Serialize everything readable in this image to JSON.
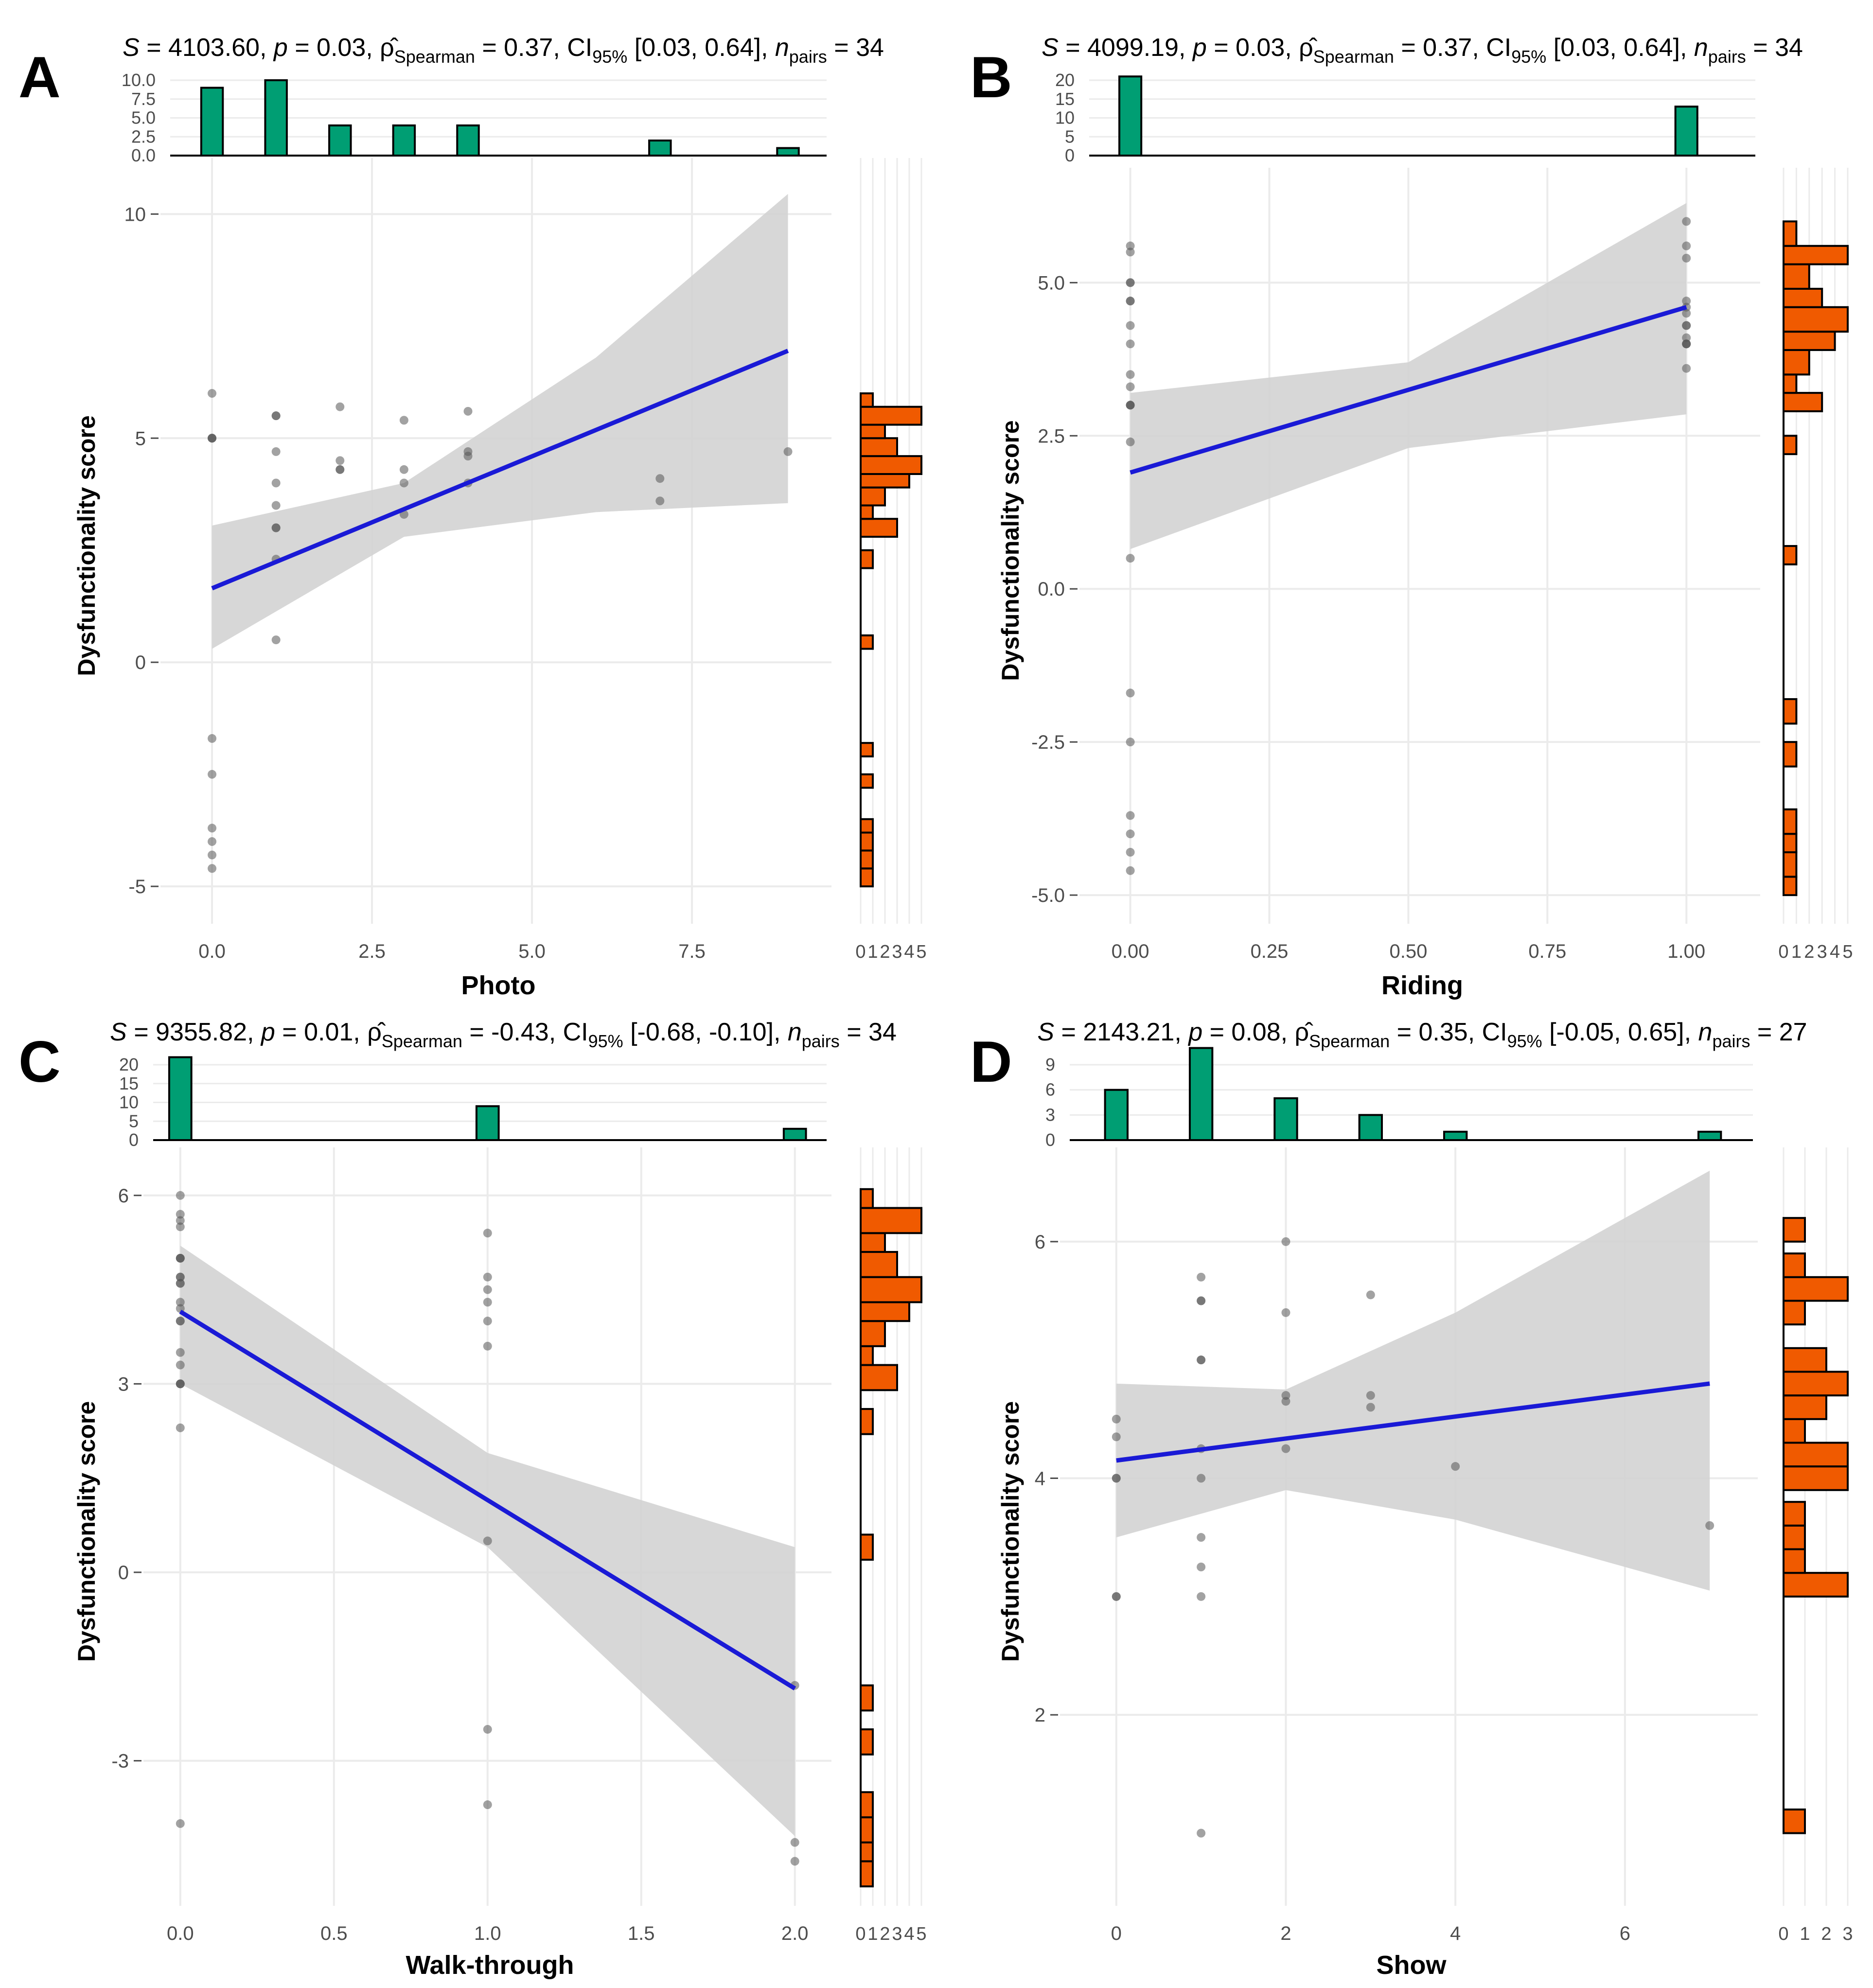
{
  "figure": {
    "y_label": "Dysfunctionality score",
    "colors": {
      "marginal_x": "#009E73",
      "marginal_y": "#F05A00",
      "fit_line": "#1A1AD6",
      "ci_band": "#D3D3D3",
      "points": "#555555",
      "grid": "#EBEBEB",
      "axis_text": "#4D4D4D",
      "text": "#000000"
    }
  },
  "chart_data": [
    {
      "panel_letter": "A",
      "type": "scatter",
      "title": {
        "S": "4103.60",
        "p": "0.03",
        "rho": "0.37",
        "ci": "[0.03, 0.64]",
        "n": "34"
      },
      "xlabel": "Photo",
      "ylabel": "Dysfunctionality score",
      "xlim": [
        -0.35,
        9.3
      ],
      "ylim": [
        -5.4,
        10.6
      ],
      "x_ticks": [
        0,
        2.5,
        5,
        7.5
      ],
      "x_tick_labels": [
        "0.0",
        "2.5",
        "5.0",
        "7.5"
      ],
      "y_ticks": [
        -5,
        0,
        5,
        10
      ],
      "y_tick_labels": [
        "-5",
        "0",
        "5",
        "10"
      ],
      "points": [
        [
          0,
          6.0
        ],
        [
          0,
          5.0
        ],
        [
          0,
          5.0
        ],
        [
          0,
          -1.7
        ],
        [
          0,
          -2.5
        ],
        [
          0,
          -3.7
        ],
        [
          0,
          -4.0
        ],
        [
          0,
          -4.3
        ],
        [
          0,
          -4.6
        ],
        [
          1,
          5.5
        ],
        [
          1,
          5.5
        ],
        [
          1,
          4.7
        ],
        [
          1,
          4.0
        ],
        [
          1,
          3.5
        ],
        [
          1,
          3.0
        ],
        [
          1,
          3.0
        ],
        [
          1,
          2.3
        ],
        [
          1,
          0.5
        ],
        [
          2,
          5.7
        ],
        [
          2,
          4.5
        ],
        [
          2,
          4.3
        ],
        [
          2,
          4.3
        ],
        [
          3,
          5.4
        ],
        [
          3,
          4.3
        ],
        [
          3,
          4.0
        ],
        [
          3,
          3.3
        ],
        [
          4,
          5.6
        ],
        [
          4,
          4.7
        ],
        [
          4,
          4.6
        ],
        [
          4,
          4.0
        ],
        [
          7,
          4.1
        ],
        [
          7,
          3.6
        ],
        [
          9,
          4.7
        ],
        [
          0,
          5.0
        ]
      ],
      "fit": {
        "x": [
          0,
          9
        ],
        "y": [
          1.65,
          6.95
        ]
      },
      "ci_band": {
        "x": [
          0,
          3,
          6,
          9
        ],
        "lower": [
          0.3,
          2.8,
          3.35,
          3.55
        ],
        "upper": [
          3.05,
          4.0,
          6.8,
          10.45
        ]
      },
      "top_hist": {
        "categories": [
          0,
          1,
          2,
          3,
          4,
          7,
          9
        ],
        "counts": [
          9,
          10,
          4,
          4,
          4,
          2,
          1
        ],
        "ticks": [
          0,
          2.5,
          5,
          7.5,
          10
        ],
        "tick_labels": [
          "0.0",
          "2.5",
          "5.0",
          "7.5",
          "10.0"
        ]
      },
      "side_hist": {
        "bins": [
          [
            -5.0,
            -4.6,
            1
          ],
          [
            -4.6,
            -4.2,
            1
          ],
          [
            -4.2,
            -3.8,
            1
          ],
          [
            -3.8,
            -3.5,
            1
          ],
          [
            -2.8,
            -2.5,
            1
          ],
          [
            -2.1,
            -1.8,
            1
          ],
          [
            0.3,
            0.6,
            1
          ],
          [
            2.1,
            2.5,
            1
          ],
          [
            2.8,
            3.2,
            3
          ],
          [
            3.2,
            3.5,
            1
          ],
          [
            3.5,
            3.9,
            2
          ],
          [
            3.9,
            4.2,
            4
          ],
          [
            4.2,
            4.6,
            5
          ],
          [
            4.6,
            5.0,
            3
          ],
          [
            5.0,
            5.3,
            2
          ],
          [
            5.3,
            5.7,
            5
          ],
          [
            5.7,
            6.0,
            1
          ]
        ],
        "ticks": [
          0,
          1,
          2,
          3,
          4,
          5
        ],
        "tick_labels": [
          "0",
          "1",
          "2",
          "3",
          "4",
          "5"
        ]
      }
    },
    {
      "panel_letter": "B",
      "type": "scatter",
      "title": {
        "S": "4099.19",
        "p": "0.03",
        "rho": "0.37",
        "ci": "[0.03, 0.64]",
        "n": "34"
      },
      "xlabel": "Riding",
      "ylabel": "Dysfunctionality score",
      "xlim": [
        -0.039,
        1.089
      ],
      "ylim": [
        -5.15,
        6.4
      ],
      "x_ticks": [
        0,
        0.25,
        0.5,
        0.75,
        1
      ],
      "x_tick_labels": [
        "0.00",
        "0.25",
        "0.50",
        "0.75",
        "1.00"
      ],
      "y_ticks": [
        -5,
        -2.5,
        0,
        2.5,
        5
      ],
      "y_tick_labels": [
        "-5.0",
        "-2.5",
        "0.0",
        "2.5",
        "5.0"
      ],
      "points": [
        [
          0,
          5.6
        ],
        [
          0,
          5.5
        ],
        [
          0,
          5.0
        ],
        [
          0,
          5.0
        ],
        [
          0,
          4.7
        ],
        [
          0,
          4.7
        ],
        [
          0,
          4.3
        ],
        [
          0,
          4.0
        ],
        [
          0,
          3.5
        ],
        [
          0,
          3.3
        ],
        [
          0,
          3.0
        ],
        [
          0,
          3.0
        ],
        [
          0,
          2.4
        ],
        [
          0,
          0.5
        ],
        [
          0,
          -1.7
        ],
        [
          0,
          -2.5
        ],
        [
          0,
          -3.7
        ],
        [
          0,
          -4.0
        ],
        [
          0,
          -4.3
        ],
        [
          0,
          -4.6
        ],
        [
          0,
          3.0
        ],
        [
          1,
          6.0
        ],
        [
          1,
          5.6
        ],
        [
          1,
          5.4
        ],
        [
          1,
          4.7
        ],
        [
          1,
          4.6
        ],
        [
          1,
          4.5
        ],
        [
          1,
          4.3
        ],
        [
          1,
          4.3
        ],
        [
          1,
          4.0
        ],
        [
          1,
          4.0
        ],
        [
          1,
          3.6
        ],
        [
          1,
          4.1
        ],
        [
          1,
          4.0
        ]
      ],
      "fit": {
        "x": [
          0,
          1
        ],
        "y": [
          1.9,
          4.6
        ]
      },
      "ci_band": {
        "x": [
          0,
          0.5,
          1
        ],
        "lower": [
          0.65,
          2.3,
          2.85
        ],
        "upper": [
          3.2,
          3.7,
          6.3
        ]
      },
      "top_hist": {
        "categories": [
          0,
          1
        ],
        "counts": [
          21,
          13
        ],
        "ticks": [
          0,
          5,
          10,
          15,
          20
        ],
        "tick_labels": [
          "0",
          "5",
          "10",
          "15",
          "20"
        ]
      },
      "side_hist": {
        "bins": [
          [
            -5.0,
            -4.7,
            1
          ],
          [
            -4.7,
            -4.3,
            1
          ],
          [
            -4.3,
            -4.0,
            1
          ],
          [
            -4.0,
            -3.6,
            1
          ],
          [
            -2.9,
            -2.5,
            1
          ],
          [
            -2.2,
            -1.8,
            1
          ],
          [
            0.4,
            0.7,
            1
          ],
          [
            2.2,
            2.5,
            1
          ],
          [
            2.9,
            3.2,
            3
          ],
          [
            3.2,
            3.5,
            1
          ],
          [
            3.5,
            3.9,
            2
          ],
          [
            3.9,
            4.2,
            4
          ],
          [
            4.2,
            4.6,
            5
          ],
          [
            4.6,
            4.9,
            3
          ],
          [
            4.9,
            5.3,
            2
          ],
          [
            5.3,
            5.6,
            5
          ],
          [
            5.6,
            6.0,
            1
          ]
        ],
        "ticks": [
          0,
          1,
          2,
          3,
          4,
          5
        ],
        "tick_labels": [
          "0",
          "1",
          "2",
          "3",
          "4",
          "5"
        ]
      }
    },
    {
      "panel_letter": "C",
      "type": "scatter",
      "title": {
        "S": "9355.82",
        "p": "0.01",
        "rho": "-0.43",
        "ci": "[-0.68, -0.10]",
        "n": "34"
      },
      "xlabel": "Walk-through",
      "ylabel": "Dysfunctionality score",
      "xlim": [
        -0.025,
        2.04
      ],
      "ylim": [
        -5.0,
        6.3
      ],
      "x_ticks": [
        0,
        0.5,
        1,
        1.5,
        2
      ],
      "x_tick_labels": [
        "0.0",
        "0.5",
        "1.0",
        "1.5",
        "2.0"
      ],
      "y_ticks": [
        -3,
        0,
        3,
        6
      ],
      "y_tick_labels": [
        "-3",
        "0",
        "3",
        "6"
      ],
      "points": [
        [
          0,
          6.0
        ],
        [
          0,
          5.7
        ],
        [
          0,
          5.6
        ],
        [
          0,
          5.5
        ],
        [
          0,
          5.0
        ],
        [
          0,
          5.0
        ],
        [
          0,
          4.7
        ],
        [
          0,
          4.6
        ],
        [
          0,
          4.3
        ],
        [
          0,
          4.2
        ],
        [
          0,
          4.0
        ],
        [
          0,
          4.0
        ],
        [
          0,
          3.5
        ],
        [
          0,
          3.3
        ],
        [
          0,
          3.0
        ],
        [
          0,
          3.0
        ],
        [
          0,
          2.3
        ],
        [
          0,
          -4.0
        ],
        [
          0,
          3.0
        ],
        [
          0,
          4.6
        ],
        [
          0,
          5.0
        ],
        [
          1,
          5.4
        ],
        [
          1,
          4.7
        ],
        [
          1,
          4.5
        ],
        [
          1,
          4.3
        ],
        [
          1,
          4.0
        ],
        [
          1,
          3.6
        ],
        [
          1,
          0.5
        ],
        [
          1,
          -2.5
        ],
        [
          1,
          -3.7
        ],
        [
          2,
          -1.8
        ],
        [
          2,
          -4.3
        ],
        [
          2,
          -4.6
        ],
        [
          0,
          4.7
        ]
      ],
      "fit": {
        "x": [
          0,
          2
        ],
        "y": [
          4.15,
          -1.85
        ]
      },
      "ci_band": {
        "x": [
          0,
          1,
          2
        ],
        "lower": [
          3.0,
          0.4,
          -4.2
        ],
        "upper": [
          5.2,
          1.9,
          0.4
        ]
      },
      "top_hist": {
        "categories": [
          0,
          1,
          2
        ],
        "counts": [
          22,
          9,
          3
        ],
        "ticks": [
          0,
          5,
          10,
          15,
          20
        ],
        "tick_labels": [
          "0",
          "5",
          "10",
          "15",
          "20"
        ]
      },
      "side_hist": {
        "bins": [
          [
            -5.0,
            -4.6,
            1
          ],
          [
            -4.6,
            -4.3,
            1
          ],
          [
            -4.3,
            -3.9,
            1
          ],
          [
            -3.9,
            -3.5,
            1
          ],
          [
            -2.9,
            -2.5,
            1
          ],
          [
            -2.2,
            -1.8,
            1
          ],
          [
            0.2,
            0.6,
            1
          ],
          [
            2.2,
            2.6,
            1
          ],
          [
            2.9,
            3.3,
            3
          ],
          [
            3.3,
            3.6,
            1
          ],
          [
            3.6,
            4.0,
            2
          ],
          [
            4.0,
            4.3,
            4
          ],
          [
            4.3,
            4.7,
            5
          ],
          [
            4.7,
            5.1,
            3
          ],
          [
            5.1,
            5.4,
            2
          ],
          [
            5.4,
            5.8,
            5
          ],
          [
            5.8,
            6.1,
            1
          ]
        ],
        "ticks": [
          0,
          1,
          2,
          3,
          4,
          5
        ],
        "tick_labels": [
          "0",
          "1",
          "2",
          "3",
          "4",
          "5"
        ]
      }
    },
    {
      "panel_letter": "D",
      "type": "scatter",
      "title": {
        "S": "2143.21",
        "p": "0.08",
        "rho": "0.35",
        "ci": "[-0.05, 0.65]",
        "n": "27"
      },
      "xlabel": "Show",
      "ylabel": "Dysfunctionality score",
      "xlim": [
        -0.32,
        7.28
      ],
      "ylim": [
        0.55,
        6.55
      ],
      "x_ticks": [
        0,
        2,
        4,
        6
      ],
      "x_tick_labels": [
        "0",
        "2",
        "4",
        "6"
      ],
      "y_ticks": [
        2,
        4,
        6
      ],
      "y_tick_labels": [
        "2",
        "4",
        "6"
      ],
      "points": [
        [
          0,
          4.5
        ],
        [
          0,
          4.35
        ],
        [
          0,
          4.0
        ],
        [
          0,
          4.0
        ],
        [
          0,
          3.0
        ],
        [
          0,
          3.0
        ],
        [
          1,
          5.7
        ],
        [
          1,
          5.5
        ],
        [
          1,
          5.5
        ],
        [
          1,
          5.0
        ],
        [
          1,
          5.0
        ],
        [
          1,
          4.25
        ],
        [
          1,
          4.0
        ],
        [
          1,
          3.5
        ],
        [
          1,
          3.25
        ],
        [
          1,
          3.0
        ],
        [
          1,
          1.0
        ],
        [
          2,
          6.0
        ],
        [
          2,
          5.4
        ],
        [
          2,
          4.7
        ],
        [
          2,
          4.65
        ],
        [
          2,
          4.25
        ],
        [
          3,
          5.55
        ],
        [
          3,
          4.7
        ],
        [
          3,
          4.6
        ],
        [
          4,
          4.1
        ],
        [
          7,
          3.6
        ]
      ],
      "fit": {
        "x": [
          0,
          7
        ],
        "y": [
          4.15,
          4.8
        ]
      },
      "ci_band": {
        "x": [
          0,
          2,
          4,
          7
        ],
        "lower": [
          3.5,
          3.9,
          3.65,
          3.05
        ],
        "upper": [
          4.8,
          4.75,
          5.4,
          6.6
        ]
      },
      "top_hist": {
        "categories": [
          0,
          1,
          2,
          3,
          4,
          7
        ],
        "counts": [
          6,
          11,
          5,
          3,
          1,
          1
        ],
        "ticks": [
          0,
          3,
          6,
          9
        ],
        "tick_labels": [
          "0",
          "3",
          "6",
          "9"
        ]
      },
      "side_hist": {
        "bins": [
          [
            1.0,
            1.2,
            1
          ],
          [
            2.8,
            3.0,
            0
          ],
          [
            3.0,
            3.2,
            3
          ],
          [
            3.2,
            3.4,
            1
          ],
          [
            3.4,
            3.6,
            1
          ],
          [
            3.6,
            3.8,
            1
          ],
          [
            3.9,
            4.1,
            3
          ],
          [
            4.1,
            4.3,
            3
          ],
          [
            4.3,
            4.5,
            1
          ],
          [
            4.5,
            4.7,
            2
          ],
          [
            4.7,
            4.9,
            3
          ],
          [
            4.9,
            5.1,
            2
          ],
          [
            5.3,
            5.5,
            1
          ],
          [
            5.5,
            5.7,
            3
          ],
          [
            5.7,
            5.9,
            1
          ],
          [
            6.0,
            6.2,
            1
          ]
        ],
        "ticks": [
          0,
          1,
          2,
          3
        ],
        "tick_labels": [
          "0",
          "1",
          "2",
          "3"
        ]
      }
    }
  ]
}
